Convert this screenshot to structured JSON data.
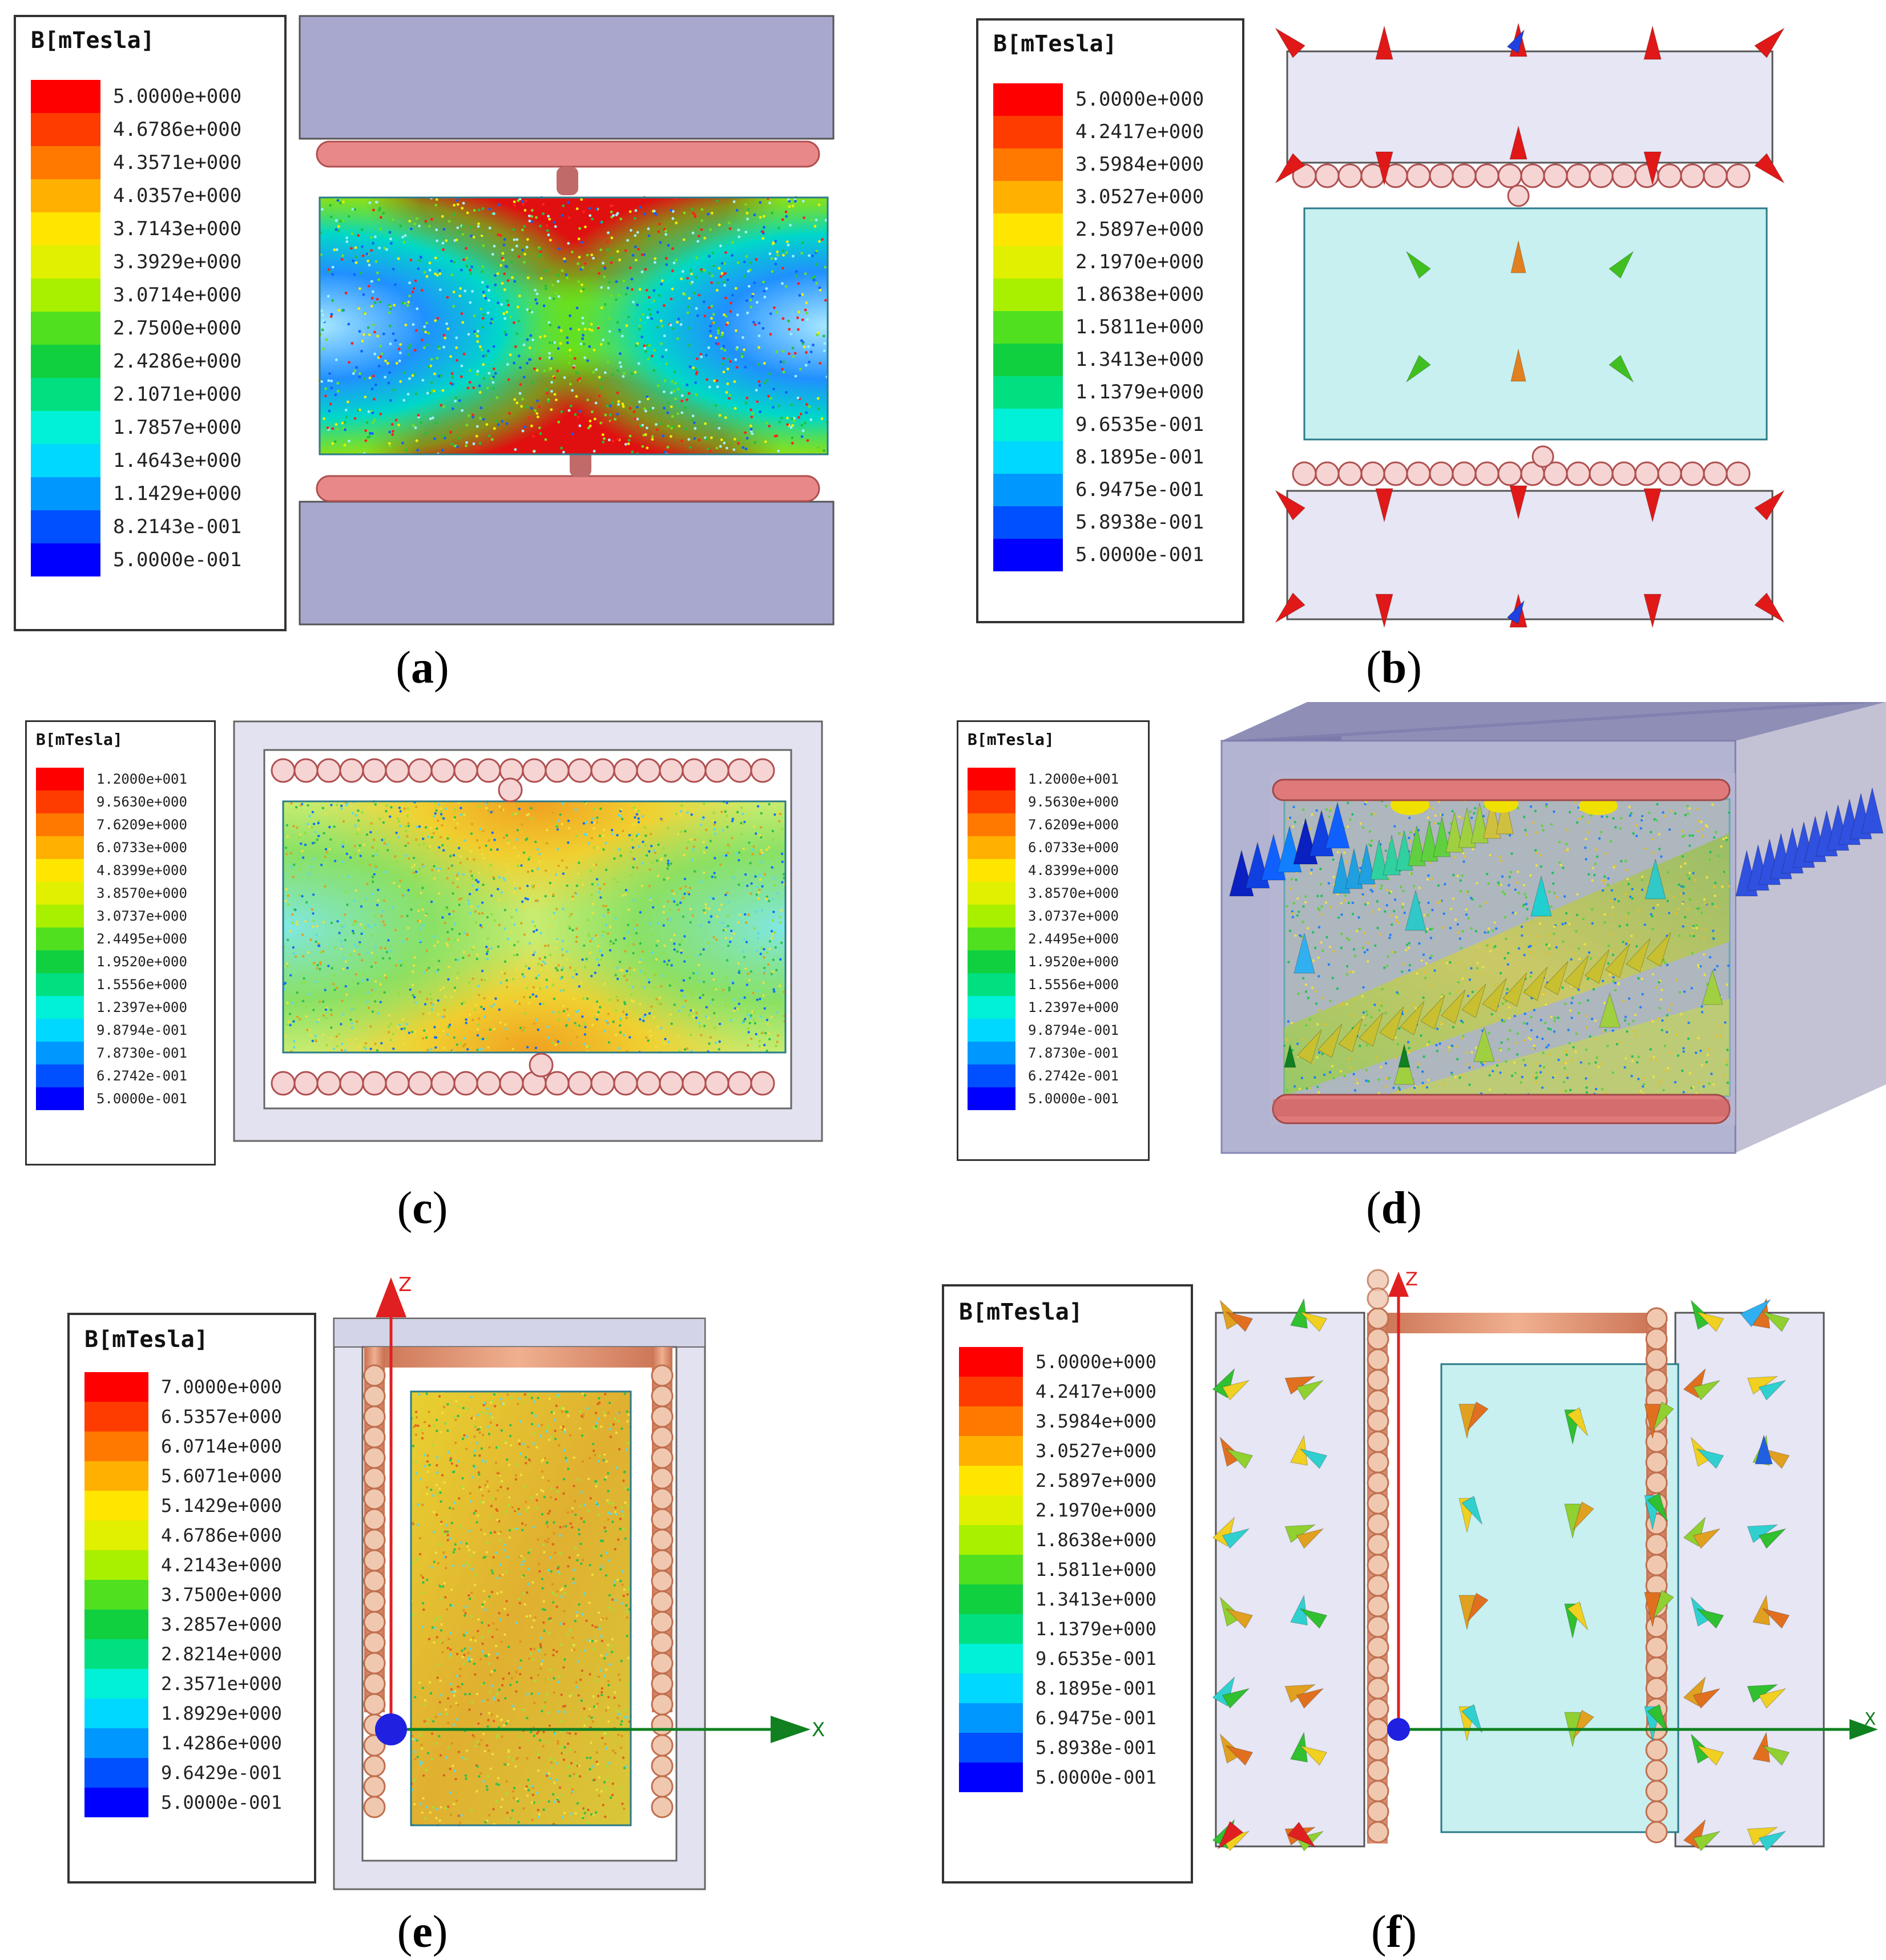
{
  "panels": [
    {
      "id": "a",
      "caption": "a",
      "legend": {
        "title": "B[mTesla]",
        "ticks": [
          "5.0000e+000",
          "4.6786e+000",
          "4.3571e+000",
          "4.0357e+000",
          "3.7143e+000",
          "3.3929e+000",
          "3.0714e+000",
          "2.7500e+000",
          "2.4286e+000",
          "2.1071e+000",
          "1.7857e+000",
          "1.4643e+000",
          "1.1429e+000",
          "8.2143e-001",
          "5.0000e-001"
        ]
      }
    },
    {
      "id": "b",
      "caption": "b",
      "legend": {
        "title": "B[mTesla]",
        "ticks": [
          "5.0000e+000",
          "4.2417e+000",
          "3.5984e+000",
          "3.0527e+000",
          "2.5897e+000",
          "2.1970e+000",
          "1.8638e+000",
          "1.5811e+000",
          "1.3413e+000",
          "1.1379e+000",
          "9.6535e-001",
          "8.1895e-001",
          "6.9475e-001",
          "5.8938e-001",
          "5.0000e-001"
        ]
      }
    },
    {
      "id": "c",
      "caption": "c",
      "legend": {
        "title": "B[mTesla]",
        "ticks": [
          "1.2000e+001",
          "9.5630e+000",
          "7.6209e+000",
          "6.0733e+000",
          "4.8399e+000",
          "3.8570e+000",
          "3.0737e+000",
          "2.4495e+000",
          "1.9520e+000",
          "1.5556e+000",
          "1.2397e+000",
          "9.8794e-001",
          "7.8730e-001",
          "6.2742e-001",
          "5.0000e-001"
        ]
      }
    },
    {
      "id": "d",
      "caption": "d",
      "legend": {
        "title": "B[mTesla]",
        "ticks": [
          "1.2000e+001",
          "9.5630e+000",
          "7.6209e+000",
          "6.0733e+000",
          "4.8399e+000",
          "3.8570e+000",
          "3.0737e+000",
          "2.4495e+000",
          "1.9520e+000",
          "1.5556e+000",
          "1.2397e+000",
          "9.8794e-001",
          "7.8730e-001",
          "6.2742e-001",
          "5.0000e-001"
        ]
      }
    },
    {
      "id": "e",
      "caption": "e",
      "legend": {
        "title": "B[mTesla]",
        "ticks": [
          "7.0000e+000",
          "6.5357e+000",
          "6.0714e+000",
          "5.6071e+000",
          "5.1429e+000",
          "4.6786e+000",
          "4.2143e+000",
          "3.7500e+000",
          "3.2857e+000",
          "2.8214e+000",
          "2.3571e+000",
          "1.8929e+000",
          "1.4286e+000",
          "9.6429e-001",
          "5.0000e-001"
        ]
      },
      "axes": {
        "z": "Z",
        "x": "X"
      }
    },
    {
      "id": "f",
      "caption": "f",
      "legend": {
        "title": "B[mTesla]",
        "ticks": [
          "5.0000e+000",
          "4.2417e+000",
          "3.5984e+000",
          "3.0527e+000",
          "2.5897e+000",
          "2.1970e+000",
          "1.8638e+000",
          "1.5811e+000",
          "1.3413e+000",
          "1.1379e+000",
          "9.6535e-001",
          "8.1895e-001",
          "6.9475e-001",
          "5.8938e-001",
          "5.0000e-001"
        ]
      },
      "axes": {
        "z": "Z",
        "x": "X"
      }
    }
  ],
  "colorscale": [
    "#ff0000",
    "#ff3c00",
    "#ff7800",
    "#ffb000",
    "#ffe600",
    "#e0f000",
    "#a8f000",
    "#50e020",
    "#10d040",
    "#00e080",
    "#00f0d8",
    "#00d8ff",
    "#0098ff",
    "#0050ff",
    "#0000ff"
  ]
}
